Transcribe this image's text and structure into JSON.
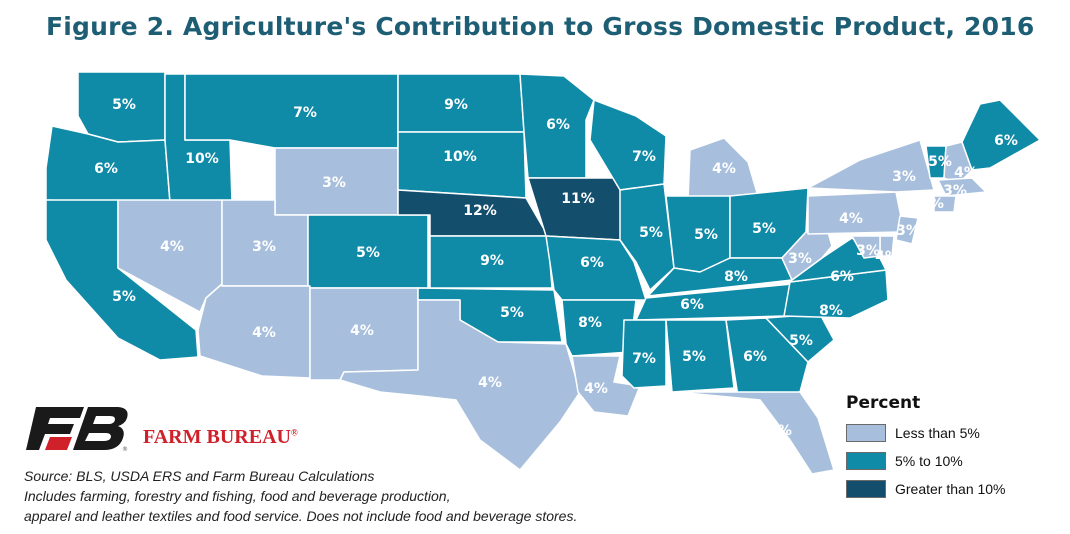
{
  "title": "Figure 2. Agriculture's Contribution to Gross Domestic Product, 2016",
  "legend": {
    "title": "Percent",
    "items": [
      {
        "label": "Less than 5%",
        "color": "#a7bfdc"
      },
      {
        "label": "5% to 10%",
        "color": "#0f8aa7"
      },
      {
        "label": "Greater than 10%",
        "color": "#144e6d"
      }
    ]
  },
  "colors": {
    "low": "#a7bfdc",
    "mid": "#0f8aa7",
    "high": "#144e6d",
    "border": "#ffffff",
    "title": "#1e5e74",
    "brand": "#d0202a"
  },
  "states": [
    {
      "abbr": "WA",
      "value": 5,
      "label": "5%"
    },
    {
      "abbr": "OR",
      "value": 6,
      "label": "6%"
    },
    {
      "abbr": "CA",
      "value": 5,
      "label": "5%"
    },
    {
      "abbr": "ID",
      "value": 10,
      "label": "10%"
    },
    {
      "abbr": "NV",
      "value": 4,
      "label": "4%"
    },
    {
      "abbr": "MT",
      "value": 7,
      "label": "7%"
    },
    {
      "abbr": "WY",
      "value": 3,
      "label": "3%"
    },
    {
      "abbr": "UT",
      "value": 3,
      "label": "3%"
    },
    {
      "abbr": "CO",
      "value": 5,
      "label": "5%"
    },
    {
      "abbr": "AZ",
      "value": 4,
      "label": "4%"
    },
    {
      "abbr": "NM",
      "value": 4,
      "label": "4%"
    },
    {
      "abbr": "ND",
      "value": 9,
      "label": "9%"
    },
    {
      "abbr": "SD",
      "value": 10,
      "label": "10%"
    },
    {
      "abbr": "NE",
      "value": 12,
      "label": "12%"
    },
    {
      "abbr": "KS",
      "value": 9,
      "label": "9%"
    },
    {
      "abbr": "OK",
      "value": 5,
      "label": "5%"
    },
    {
      "abbr": "TX",
      "value": 4,
      "label": "4%"
    },
    {
      "abbr": "MN",
      "value": 6,
      "label": "6%"
    },
    {
      "abbr": "IA",
      "value": 11,
      "label": "11%"
    },
    {
      "abbr": "MO",
      "value": 6,
      "label": "6%"
    },
    {
      "abbr": "AR",
      "value": 8,
      "label": "8%"
    },
    {
      "abbr": "LA",
      "value": 4,
      "label": "4%"
    },
    {
      "abbr": "WI",
      "value": 7,
      "label": "7%"
    },
    {
      "abbr": "IL",
      "value": 5,
      "label": "5%"
    },
    {
      "abbr": "MI",
      "value": 4,
      "label": "4%"
    },
    {
      "abbr": "IN",
      "value": 5,
      "label": "5%"
    },
    {
      "abbr": "OH",
      "value": 5,
      "label": "5%"
    },
    {
      "abbr": "KY",
      "value": 8,
      "label": "8%"
    },
    {
      "abbr": "TN",
      "value": 6,
      "label": "6%"
    },
    {
      "abbr": "MS",
      "value": 7,
      "label": "7%"
    },
    {
      "abbr": "AL",
      "value": 5,
      "label": "5%"
    },
    {
      "abbr": "GA",
      "value": 6,
      "label": "6%"
    },
    {
      "abbr": "FL",
      "value": 4,
      "label": "4%"
    },
    {
      "abbr": "SC",
      "value": 5,
      "label": "5%"
    },
    {
      "abbr": "NC",
      "value": 8,
      "label": "8%"
    },
    {
      "abbr": "VA",
      "value": 6,
      "label": "6%"
    },
    {
      "abbr": "WV",
      "value": 3,
      "label": "3%"
    },
    {
      "abbr": "PA",
      "value": 4,
      "label": "4%"
    },
    {
      "abbr": "NY",
      "value": 3,
      "label": "3%"
    },
    {
      "abbr": "VT",
      "value": 5,
      "label": "5%"
    },
    {
      "abbr": "NH",
      "value": 4,
      "label": "4%"
    },
    {
      "abbr": "ME",
      "value": 6,
      "label": "6%"
    },
    {
      "abbr": "MA",
      "value": 3,
      "label": "3%"
    },
    {
      "abbr": "CT",
      "value": 3,
      "label": "3%"
    },
    {
      "abbr": "NJ",
      "value": 3,
      "label": "3%"
    },
    {
      "abbr": "DE",
      "value": 3,
      "label": "3%"
    },
    {
      "abbr": "MD",
      "value": 4,
      "label": "4%"
    }
  ],
  "brand": {
    "name": "FARM BUREAU",
    "mark": "®",
    "logo_icon": "farm-bureau-fb-logo-icon"
  },
  "source": "Source: BLS, USDA ERS and Farm Bureau Calculations",
  "notes": [
    "Includes farming, forestry and fishing, food and beverage production,",
    "apparel and leather textiles and food service. Does not include food and beverage stores."
  ]
}
